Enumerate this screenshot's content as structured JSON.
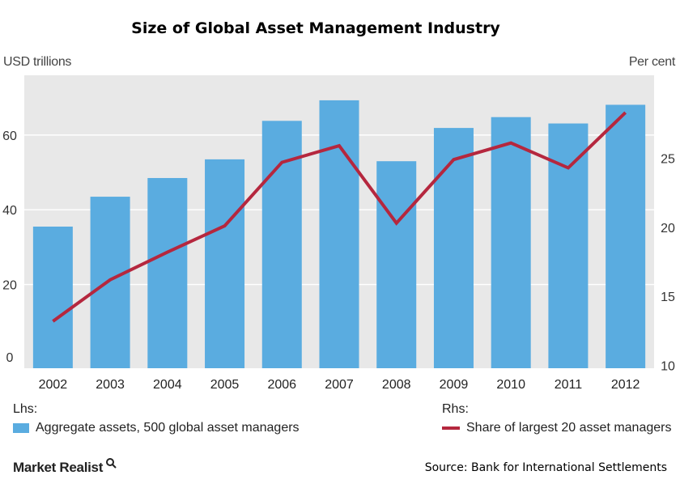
{
  "chart_data": {
    "type": "bar",
    "title": "Size of Global Asset Management Industry",
    "left_unit": "USD trillions",
    "right_unit": "Per cent",
    "categories": [
      "2002",
      "2003",
      "2004",
      "2005",
      "2006",
      "2007",
      "2008",
      "2009",
      "2010",
      "2011",
      "2012"
    ],
    "series": [
      {
        "name": "Aggregate assets, 500 global asset managers",
        "kind": "bar",
        "axis": "left",
        "values": [
          35.5,
          43.5,
          48.5,
          53.5,
          63.8,
          69.3,
          53,
          61.9,
          64.8,
          63.1,
          68.1
        ]
      },
      {
        "name": "Share of largest 20 asset managers",
        "kind": "line",
        "axis": "right",
        "values": [
          13.2,
          16.2,
          18.2,
          20.1,
          24.7,
          25.9,
          20.3,
          24.9,
          26.1,
          24.3,
          28.3
        ]
      }
    ],
    "left_ylim": [
      -2.4,
      76
    ],
    "right_ylim": [
      9.8,
      31
    ],
    "left_ticks": [
      0,
      20,
      40,
      60
    ],
    "right_ticks": [
      10,
      15,
      20,
      25
    ],
    "grid": true,
    "lhs_label": "Lhs:",
    "rhs_label": "Rhs:",
    "colors": {
      "bar": "#5aace0",
      "line": "#b5273e",
      "plot_bg": "#e8e8e8",
      "grid": "#ffffff"
    }
  },
  "footer": {
    "brand": "Market Realist",
    "source": "Source: Bank for International Settlements"
  }
}
